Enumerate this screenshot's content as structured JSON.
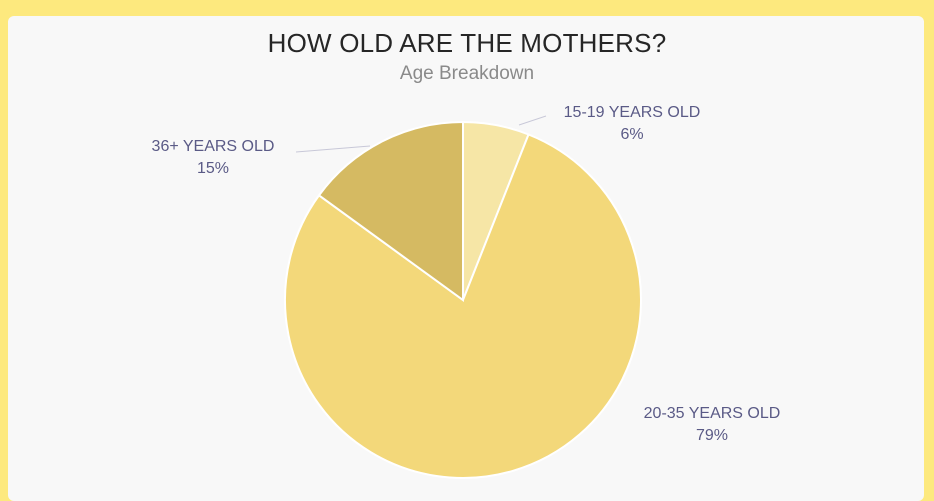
{
  "page": {
    "background_color": "#fde97e",
    "card_color": "#f8f8f8"
  },
  "chart_data": {
    "type": "pie",
    "title": "HOW OLD ARE THE MOTHERS?",
    "subtitle": "Age Breakdown",
    "slices": [
      {
        "label": "15-19 YEARS OLD",
        "value": 6,
        "value_label": "6%",
        "color": "#f6e6a6"
      },
      {
        "label": "20-35 YEARS OLD",
        "value": 79,
        "value_label": "79%",
        "color": "#f3d87a"
      },
      {
        "label": "36+ YEARS OLD",
        "value": 15,
        "value_label": "15%",
        "color": "#d5ba62"
      }
    ],
    "start_angle_deg": 0,
    "direction": "clockwise",
    "label_color": "#5a5a86"
  }
}
